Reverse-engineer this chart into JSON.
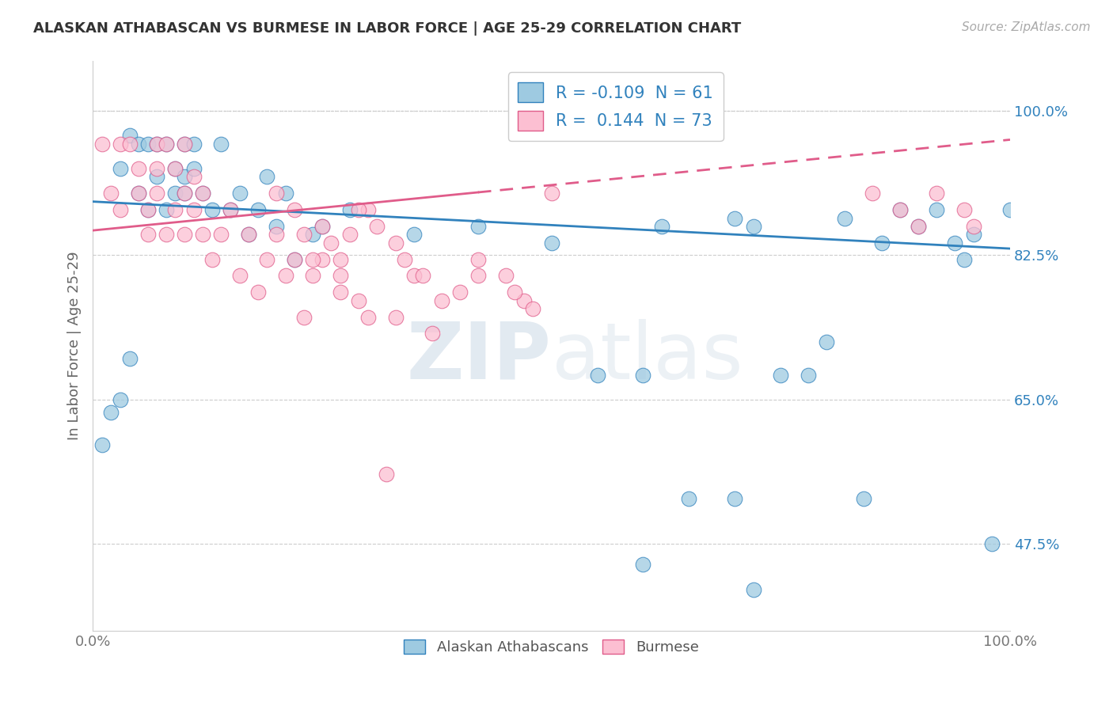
{
  "title": "ALASKAN ATHABASCAN VS BURMESE IN LABOR FORCE | AGE 25-29 CORRELATION CHART",
  "source": "Source: ZipAtlas.com",
  "ylabel": "In Labor Force | Age 25-29",
  "xlim": [
    0.0,
    1.0
  ],
  "ylim": [
    0.37,
    1.06
  ],
  "yticks": [
    0.475,
    0.65,
    0.825,
    1.0
  ],
  "ytick_labels": [
    "47.5%",
    "65.0%",
    "82.5%",
    "100.0%"
  ],
  "xtick_labels": [
    "0.0%",
    "100.0%"
  ],
  "xticks": [
    0.0,
    1.0
  ],
  "blue_color": "#9ecae1",
  "pink_color": "#fcbfd2",
  "trend_blue": "#3182bd",
  "trend_pink": "#e05c8a",
  "r_value_color": "#3182bd",
  "watermark_color": "#d0dce8",
  "blue_scatter_x": [
    0.01,
    0.02,
    0.03,
    0.04,
    0.05,
    0.05,
    0.06,
    0.06,
    0.07,
    0.07,
    0.08,
    0.08,
    0.09,
    0.09,
    0.1,
    0.1,
    0.1,
    0.11,
    0.11,
    0.12,
    0.13,
    0.14,
    0.15,
    0.16,
    0.17,
    0.18,
    0.19,
    0.2,
    0.21,
    0.22,
    0.24,
    0.25,
    0.28,
    0.35,
    0.42,
    0.5,
    0.55,
    0.6,
    0.62,
    0.65,
    0.7,
    0.72,
    0.75,
    0.78,
    0.8,
    0.82,
    0.84,
    0.86,
    0.88,
    0.9,
    0.92,
    0.94,
    0.95,
    0.96,
    0.98,
    1.0,
    0.6,
    0.7,
    0.72,
    0.04,
    0.03
  ],
  "blue_scatter_y": [
    0.595,
    0.635,
    0.93,
    0.97,
    0.9,
    0.96,
    0.88,
    0.96,
    0.92,
    0.96,
    0.88,
    0.96,
    0.9,
    0.93,
    0.96,
    0.9,
    0.92,
    0.93,
    0.96,
    0.9,
    0.88,
    0.96,
    0.88,
    0.9,
    0.85,
    0.88,
    0.92,
    0.86,
    0.9,
    0.82,
    0.85,
    0.86,
    0.88,
    0.85,
    0.86,
    0.84,
    0.68,
    0.68,
    0.86,
    0.53,
    0.87,
    0.86,
    0.68,
    0.68,
    0.72,
    0.87,
    0.53,
    0.84,
    0.88,
    0.86,
    0.88,
    0.84,
    0.82,
    0.85,
    0.475,
    0.88,
    0.45,
    0.53,
    0.42,
    0.7,
    0.65
  ],
  "pink_scatter_x": [
    0.01,
    0.02,
    0.03,
    0.03,
    0.04,
    0.05,
    0.05,
    0.06,
    0.06,
    0.07,
    0.07,
    0.07,
    0.08,
    0.08,
    0.09,
    0.09,
    0.1,
    0.1,
    0.1,
    0.11,
    0.11,
    0.12,
    0.12,
    0.13,
    0.14,
    0.15,
    0.16,
    0.17,
    0.18,
    0.19,
    0.2,
    0.21,
    0.22,
    0.23,
    0.24,
    0.25,
    0.27,
    0.3,
    0.32,
    0.35,
    0.38,
    0.4,
    0.42,
    0.45,
    0.47,
    0.5,
    0.3,
    0.25,
    0.26,
    0.27,
    0.28,
    0.29,
    0.31,
    0.33,
    0.34,
    0.36,
    0.85,
    0.88,
    0.9,
    0.92,
    0.95,
    0.96,
    0.2,
    0.22,
    0.23,
    0.24,
    0.27,
    0.29,
    0.33,
    0.37,
    0.42,
    0.46,
    0.48
  ],
  "pink_scatter_y": [
    0.96,
    0.9,
    0.96,
    0.88,
    0.96,
    0.9,
    0.93,
    0.85,
    0.88,
    0.93,
    0.96,
    0.9,
    0.85,
    0.96,
    0.88,
    0.93,
    0.85,
    0.9,
    0.96,
    0.88,
    0.92,
    0.85,
    0.9,
    0.82,
    0.85,
    0.88,
    0.8,
    0.85,
    0.78,
    0.82,
    0.85,
    0.8,
    0.82,
    0.75,
    0.8,
    0.82,
    0.78,
    0.75,
    0.56,
    0.8,
    0.77,
    0.78,
    0.82,
    0.8,
    0.77,
    0.9,
    0.88,
    0.86,
    0.84,
    0.82,
    0.85,
    0.88,
    0.86,
    0.84,
    0.82,
    0.8,
    0.9,
    0.88,
    0.86,
    0.9,
    0.88,
    0.86,
    0.9,
    0.88,
    0.85,
    0.82,
    0.8,
    0.77,
    0.75,
    0.73,
    0.8,
    0.78,
    0.76
  ],
  "trend_blue_start_y": 0.89,
  "trend_blue_end_y": 0.833,
  "trend_pink_start_y": 0.855,
  "trend_pink_end_y": 0.965
}
